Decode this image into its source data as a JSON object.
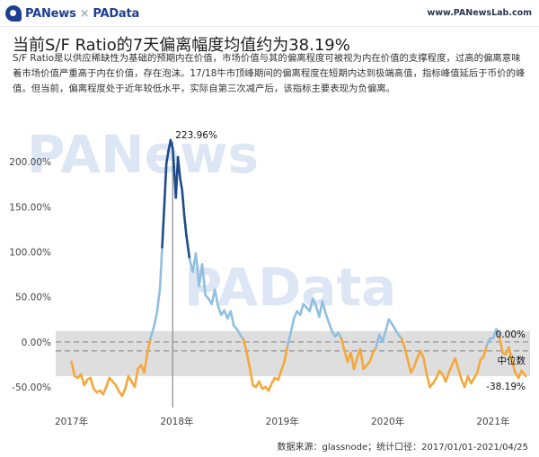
{
  "header": {
    "brand_primary": "PANews",
    "brand_separator": "×",
    "brand_secondary": "PAData",
    "site": "www.PANewsLab.com",
    "brand_color": "#1d3f92"
  },
  "page": {
    "title": "当前S/F Ratio的7天偏离幅度均值约为38.19%",
    "description": "S/F Ratio是以供应稀缺性为基础的预期内在价值，市场价值与其的偏离程度可被视为内在价值的支撑程度，过高的偏离意味着市场价值严重高于内在价值，存在泡沫。17/18牛市顶峰期间的偏离程度在短期内达到极端高值，指标峰值延后于币价的峰值。但当前，偏离程度处于近年较低水平，实际自第三次减产后，该指标主要表现为负偏离。",
    "source": "数据来源：glassnode；统计口径：2017/01/01-2021/04/25"
  },
  "chart_data": {
    "type": "line",
    "title": "",
    "xlabel": "",
    "ylabel": "",
    "x_ticks": [
      "2017年",
      "2018年",
      "2019年",
      "2020年",
      "2021年"
    ],
    "y_ticks": [
      "-50.00%",
      "0.00%",
      "50.00%",
      "100.00%",
      "150.00%",
      "200.00%"
    ],
    "y_tick_values": [
      -50,
      0,
      50,
      100,
      150,
      200
    ],
    "xlim": [
      2016.85,
      2021.35
    ],
    "ylim": [
      -65,
      232
    ],
    "median_band": [
      -38,
      12
    ],
    "median_value": -10,
    "zero_line": 0,
    "color_positive": "#90bfe0",
    "color_high": "#1e4b8c",
    "color_negative": "#f4a83c",
    "band_color": "#dedede",
    "annotations": {
      "peak_label": "223.96%",
      "peak_x": 2017.96,
      "zero_label": "0.00%",
      "median_label": "中位数",
      "current_label": "-38.19%"
    },
    "series": [
      {
        "x": [
          2017.0,
          2017.03,
          2017.06,
          2017.09,
          2017.12,
          2017.15,
          2017.18,
          2017.21,
          2017.24,
          2017.27,
          2017.3,
          2017.33,
          2017.36,
          2017.39,
          2017.42,
          2017.45,
          2017.48,
          2017.51,
          2017.54,
          2017.57,
          2017.6,
          2017.63,
          2017.66,
          2017.69,
          2017.72,
          2017.75,
          2017.78,
          2017.81,
          2017.84,
          2017.86,
          2017.88,
          2017.9,
          2017.92,
          2017.94,
          2017.96,
          2017.97,
          2017.99,
          2018.01,
          2018.03,
          2018.05,
          2018.07,
          2018.09,
          2018.12,
          2018.15,
          2018.18,
          2018.21,
          2018.24,
          2018.27,
          2018.3,
          2018.33,
          2018.36,
          2018.39,
          2018.42,
          2018.45,
          2018.48,
          2018.51,
          2018.54,
          2018.57,
          2018.6,
          2018.63,
          2018.66,
          2018.69,
          2018.72,
          2018.75,
          2018.78,
          2018.81,
          2018.84,
          2018.87,
          2018.9,
          2018.93,
          2018.96,
          2018.99,
          2019.02,
          2019.05,
          2019.08,
          2019.11,
          2019.14,
          2019.17,
          2019.2,
          2019.23,
          2019.26,
          2019.29,
          2019.32,
          2019.35,
          2019.38,
          2019.41,
          2019.44,
          2019.47,
          2019.5,
          2019.53,
          2019.56,
          2019.59,
          2019.62,
          2019.65,
          2019.68,
          2019.71,
          2019.74,
          2019.77,
          2019.8,
          2019.83,
          2019.86,
          2019.89,
          2019.92,
          2019.95,
          2019.98,
          2020.01,
          2020.04,
          2020.07,
          2020.1,
          2020.13,
          2020.16,
          2020.19,
          2020.22,
          2020.25,
          2020.28,
          2020.31,
          2020.34,
          2020.37,
          2020.4,
          2020.43,
          2020.46,
          2020.49,
          2020.52,
          2020.55,
          2020.58,
          2020.61,
          2020.64,
          2020.67,
          2020.7,
          2020.73,
          2020.76,
          2020.79,
          2020.82,
          2020.85,
          2020.88,
          2020.91,
          2020.94,
          2020.97,
          2021.0,
          2021.03,
          2021.06,
          2021.09,
          2021.12,
          2021.15,
          2021.18,
          2021.21,
          2021.24,
          2021.27,
          2021.31
        ],
        "values": [
          -22,
          -38,
          -40,
          -36,
          -48,
          -42,
          -40,
          -52,
          -56,
          -54,
          -58,
          -50,
          -40,
          -44,
          -48,
          -55,
          -60,
          -52,
          -38,
          -44,
          -50,
          -30,
          -26,
          -34,
          -12,
          4,
          16,
          32,
          60,
          105,
          150,
          198,
          212,
          224,
          215,
          198,
          160,
          205,
          182,
          168,
          140,
          118,
          92,
          78,
          98,
          62,
          86,
          52,
          48,
          42,
          58,
          40,
          30,
          35,
          26,
          34,
          18,
          14,
          8,
          3,
          -10,
          -28,
          -48,
          -50,
          -44,
          -52,
          -50,
          -54,
          -46,
          -40,
          -42,
          -32,
          -22,
          -4,
          10,
          26,
          34,
          30,
          42,
          38,
          34,
          48,
          40,
          28,
          45,
          32,
          22,
          12,
          6,
          10,
          4,
          -10,
          -22,
          -12,
          -30,
          -18,
          -8,
          -30,
          -26,
          -22,
          -12,
          -6,
          8,
          0,
          12,
          25,
          20,
          14,
          8,
          4,
          -6,
          -20,
          -34,
          -28,
          -18,
          -10,
          -18,
          -36,
          -50,
          -46,
          -40,
          -32,
          -36,
          -44,
          -34,
          -26,
          -18,
          -30,
          -42,
          -50,
          -38,
          -46,
          -40,
          -34,
          -20,
          -16,
          -4,
          4,
          4,
          14,
          6,
          -12,
          -14,
          -6,
          -22,
          -34,
          -40,
          -32,
          -38
        ]
      }
    ]
  }
}
